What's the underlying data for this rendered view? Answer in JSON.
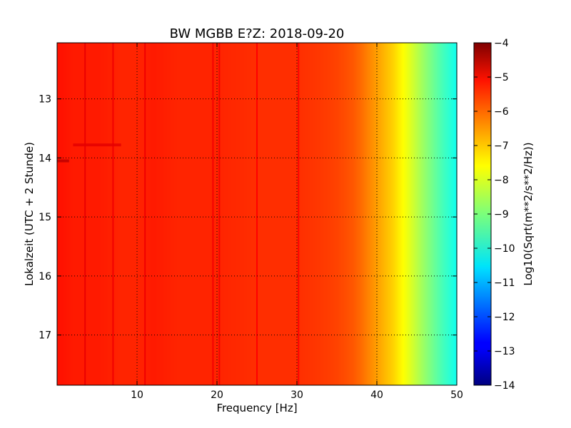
{
  "chart_data": {
    "type": "heatmap",
    "title": "BW MGBB E?Z: 2018-09-20",
    "xlabel": "Frequency [Hz]",
    "ylabel": "Lokalzeit (UTC + 2 Stunde)",
    "colorbar_label": "Log10(Sqrt(m**2/s**2/Hz))",
    "colormap": "jet",
    "grid": true,
    "xlim": [
      0,
      50
    ],
    "ylim": [
      17.85,
      12.05
    ],
    "x_ticks": [
      10,
      20,
      30,
      40,
      50
    ],
    "y_ticks": [
      13,
      14,
      15,
      16,
      17
    ],
    "clim": [
      -14,
      -4
    ],
    "colorbar_ticks": [
      -4,
      -5,
      -6,
      -7,
      -8,
      -9,
      -10,
      -11,
      -12,
      -13,
      -14
    ],
    "spectral_profile": {
      "frequency_hz": [
        0,
        2,
        5,
        8,
        10,
        12,
        15,
        20,
        25,
        30,
        33,
        35,
        37,
        38,
        40,
        42,
        44,
        46,
        48,
        50
      ],
      "log10_amplitude": [
        -5.4,
        -5.5,
        -5.5,
        -5.6,
        -5.6,
        -5.5,
        -5.6,
        -5.6,
        -5.7,
        -5.7,
        -5.8,
        -5.9,
        -6.1,
        -6.3,
        -6.8,
        -7.3,
        -8.0,
        -8.8,
        -9.5,
        -10.1
      ]
    },
    "spectral_lines_hz": [
      3.5,
      7,
      11,
      19.5,
      20.3,
      25,
      30.2
    ],
    "time_features": [
      {
        "time_h": 13.78,
        "freq_range_hz": [
          2,
          8
        ],
        "log10_amplitude": -5.0
      },
      {
        "time_h": 14.05,
        "freq_range_hz": [
          0,
          1.5
        ],
        "log10_amplitude": -4.6
      }
    ]
  }
}
